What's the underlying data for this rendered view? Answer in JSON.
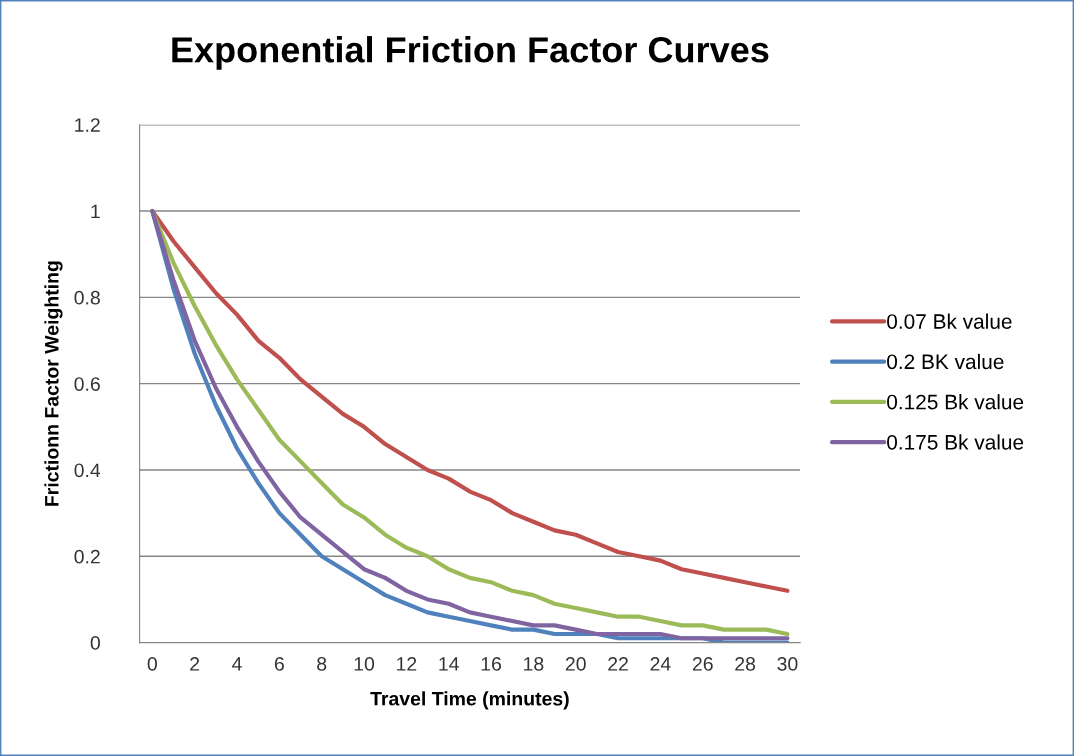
{
  "chart_data": {
    "type": "line",
    "title": "Exponential Friction Factor Curves",
    "xlabel": "Travel Time (minutes)",
    "ylabel": "Frictionn Factor Weighting",
    "categories": [
      "0",
      null,
      "2",
      null,
      "4",
      null,
      "6",
      null,
      "8",
      null,
      "10",
      null,
      "12",
      null,
      "14",
      null,
      "16",
      null,
      "18",
      null,
      "20",
      null,
      "22",
      null,
      "24",
      null,
      "26",
      null,
      "28",
      null,
      "30"
    ],
    "series": [
      {
        "name": "0.07 Bk value",
        "color": "#c0504d",
        "values": [
          1,
          0.93,
          0.87,
          0.81,
          0.76,
          0.7,
          0.66,
          0.61,
          0.57,
          0.53,
          0.5,
          0.46,
          0.43,
          0.4,
          0.38,
          0.35,
          0.33,
          0.3,
          0.28,
          0.26,
          0.25,
          0.23,
          0.21,
          0.2,
          0.19,
          0.17,
          0.16,
          0.15,
          0.14,
          0.13,
          0.12
        ]
      },
      {
        "name": "0.2 BK value",
        "color": "#4f81bd",
        "values": [
          1,
          0.82,
          0.67,
          0.55,
          0.45,
          0.37,
          0.3,
          0.25,
          0.2,
          0.17,
          0.14,
          0.11,
          0.09,
          0.07,
          0.06,
          0.05,
          0.04,
          0.03,
          0.03,
          0.02,
          0.02,
          0.02,
          0.01,
          0.01,
          0.01,
          0.01,
          0.01,
          0,
          0,
          0,
          0
        ]
      },
      {
        "name": "0.125 Bk value",
        "color": "#9bbb59",
        "values": [
          1,
          0.88,
          0.78,
          0.69,
          0.61,
          0.54,
          0.47,
          0.42,
          0.37,
          0.32,
          0.29,
          0.25,
          0.22,
          0.2,
          0.17,
          0.15,
          0.14,
          0.12,
          0.11,
          0.09,
          0.08,
          0.07,
          0.06,
          0.06,
          0.05,
          0.04,
          0.04,
          0.03,
          0.03,
          0.03,
          0.02
        ]
      },
      {
        "name": "0.175 Bk value",
        "color": "#8064a2",
        "values": [
          1,
          0.84,
          0.7,
          0.59,
          0.5,
          0.42,
          0.35,
          0.29,
          0.25,
          0.21,
          0.17,
          0.15,
          0.12,
          0.1,
          0.09,
          0.07,
          0.06,
          0.05,
          0.04,
          0.04,
          0.03,
          0.02,
          0.02,
          0.02,
          0.02,
          0.01,
          0.01,
          0.01,
          0.01,
          0.01,
          0.01
        ]
      }
    ],
    "ylim": [
      0,
      1.2
    ],
    "yticks": [
      0,
      0.2,
      0.4,
      0.6,
      0.8,
      1,
      1.2
    ],
    "grid": "y",
    "legend": "right",
    "marker": "none",
    "line_style": "solid"
  }
}
